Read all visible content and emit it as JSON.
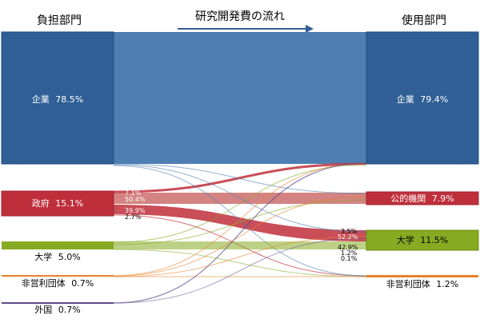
{
  "chart_data": {
    "type": "sankey",
    "title": "研究開発費の流れ",
    "left_header": "負担部門",
    "right_header": "使用部門",
    "colors": {
      "corp": "#2f5f95",
      "gov": "#bf2f3b",
      "univ": "#86ab22",
      "nonprofit": "#e8812a",
      "foreign": "#5f4b8b",
      "band": "#4e7fb3"
    },
    "sources": [
      {
        "id": "corp",
        "label": "企業",
        "share_label": "78.5%"
      },
      {
        "id": "gov",
        "label": "政府",
        "share_label": "15.1%"
      },
      {
        "id": "univ",
        "label": "大学",
        "share_label": "5.0%"
      },
      {
        "id": "nonprofit",
        "label": "非営利団体",
        "share_label": "0.7%"
      },
      {
        "id": "foreign",
        "label": "外国",
        "share_label": "0.7%"
      }
    ],
    "targets": [
      {
        "id": "corp",
        "label": "企業",
        "share_label": "79.4%"
      },
      {
        "id": "gov",
        "label": "公的機関",
        "share_label": "7.9%"
      },
      {
        "id": "univ",
        "label": "大学",
        "share_label": "11.5%"
      },
      {
        "id": "nonprofit",
        "label": "非営利団体",
        "share_label": "1.2%"
      }
    ],
    "flow_labels": {
      "gov_out": [
        "7.1%",
        "50.4%",
        "39.9%",
        "2.7%"
      ],
      "univ_in": [
        "3.5%",
        "52.2%",
        "42.9%",
        "1.2%",
        "0.1%"
      ]
    }
  }
}
